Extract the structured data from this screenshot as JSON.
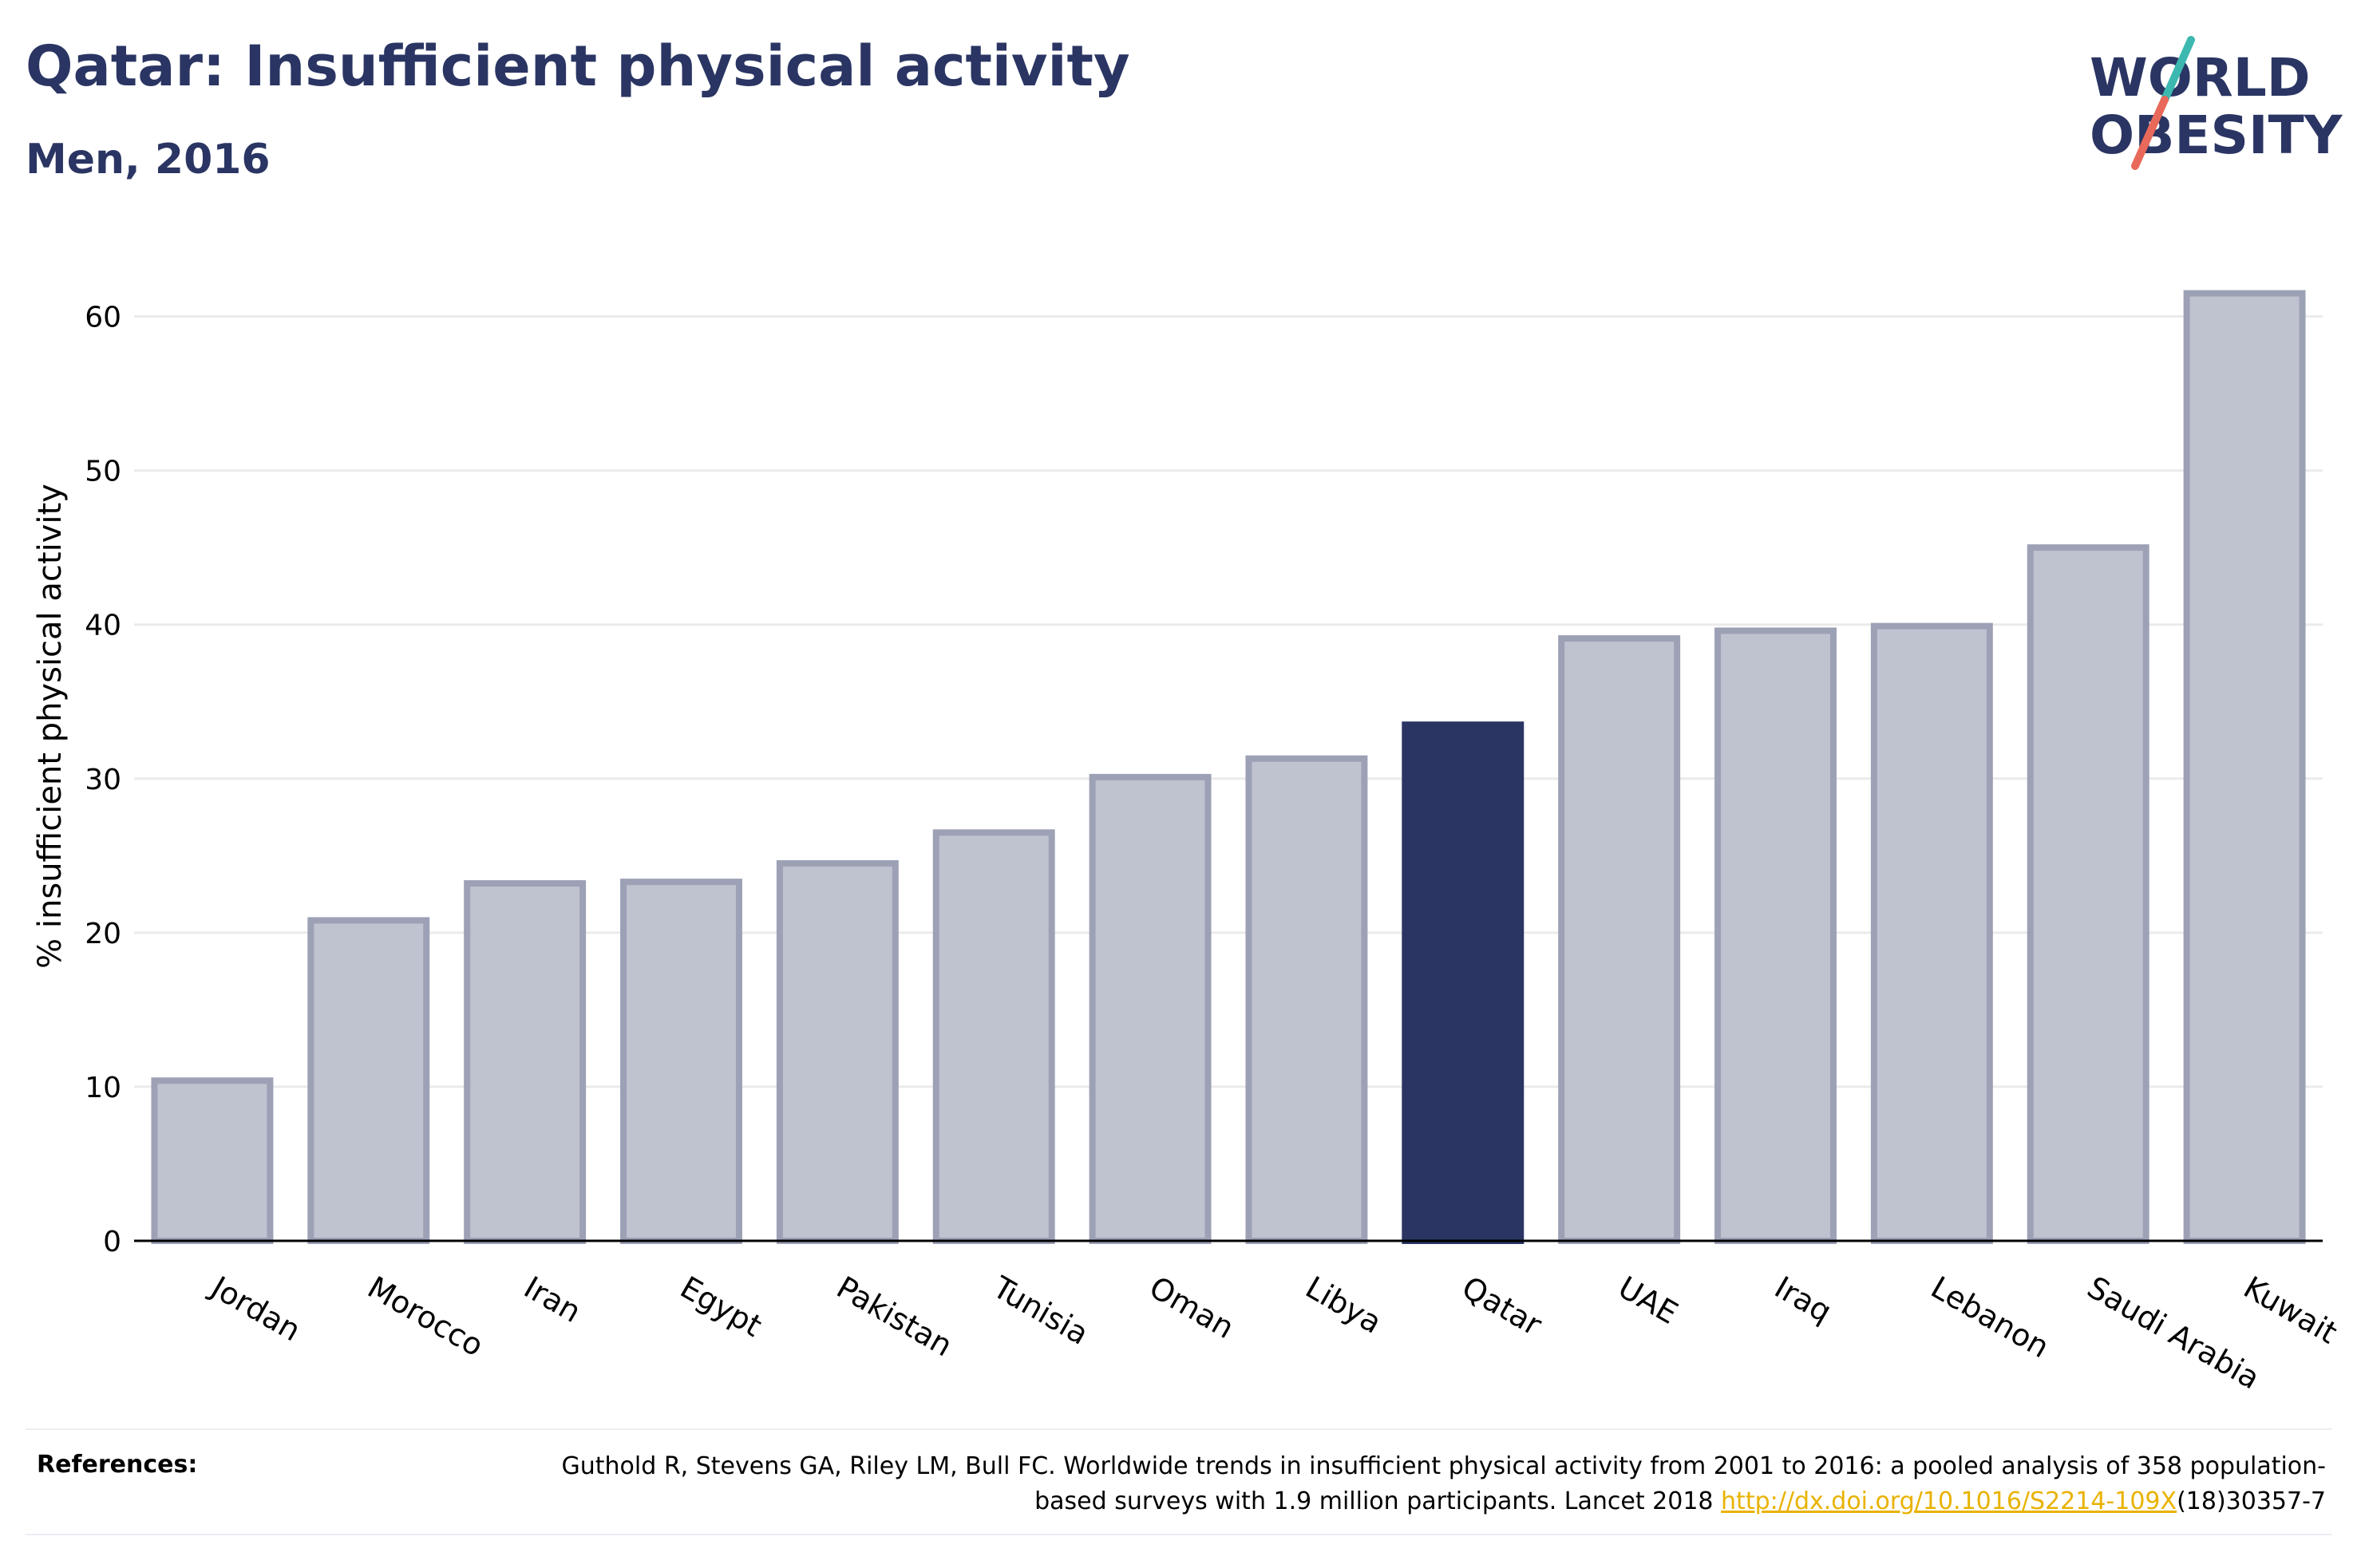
{
  "header": {
    "title": "Qatar: Insufficient physical activity",
    "subtitle": "Men, 2016"
  },
  "logo": {
    "line1": "WORLD",
    "line2": "OBESITY",
    "text_color": "#2a3563",
    "slash_color_top": "#3cb8b0",
    "slash_color_bottom": "#e8695a"
  },
  "chart_data": {
    "type": "bar",
    "categories": [
      "Jordan",
      "Morocco",
      "Iran",
      "Egypt",
      "Pakistan",
      "Tunisia",
      "Oman",
      "Libya",
      "Qatar",
      "UAE",
      "Iraq",
      "Lebanon",
      "Saudi Arabia",
      "Kuwait"
    ],
    "values": [
      10.4,
      20.8,
      23.2,
      23.3,
      24.5,
      26.5,
      30.1,
      31.3,
      33.5,
      39.1,
      39.6,
      39.9,
      45.0,
      61.5
    ],
    "highlight": "Qatar",
    "title": "",
    "xlabel": "",
    "ylabel": "% insufficient physical activity",
    "ylim": [
      0,
      65
    ],
    "yticks": [
      0,
      10,
      20,
      30,
      40,
      50,
      60
    ],
    "grid": true,
    "colors": {
      "bar_fill": "#bfc2cf",
      "bar_stroke": "#9da1b6",
      "highlight_fill": "#2a3563",
      "grid": "#ebebeb",
      "axis": "#000000"
    }
  },
  "references": {
    "label": "References:",
    "text_before": "Guthold R, Stevens GA, Riley LM, Bull FC. Worldwide trends in insufficient physical activity from 2001 to 2016: a pooled analysis of 358 population-based surveys with 1.9 million participants. Lancet 2018 ",
    "link_text": "http://dx.doi.org/10.1016/S2214-109X",
    "text_after": "(18)30357-7"
  }
}
